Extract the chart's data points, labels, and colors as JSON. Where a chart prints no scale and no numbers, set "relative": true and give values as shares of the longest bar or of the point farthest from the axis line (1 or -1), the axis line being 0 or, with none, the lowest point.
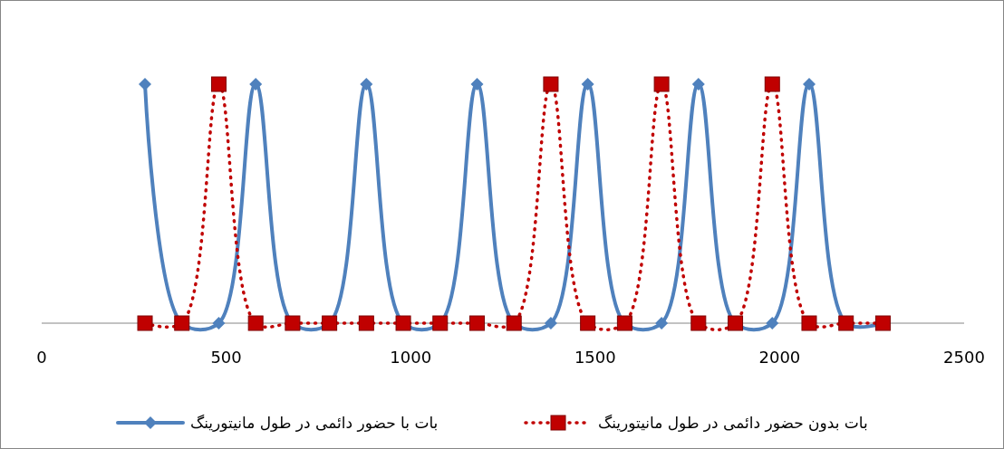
{
  "chart_data": {
    "type": "line",
    "relative": true,
    "x": [
      280,
      380,
      480,
      580,
      680,
      780,
      880,
      980,
      1080,
      1180,
      1280,
      1380,
      1480,
      1580,
      1680,
      1780,
      1880,
      1980,
      2080,
      2180,
      2280
    ],
    "xlim": [
      0,
      2500
    ],
    "xticks": [
      0,
      500,
      1000,
      1500,
      2000,
      2500
    ],
    "legend": "bottom",
    "grid": false,
    "series": [
      {
        "name": "بات با حضور دائمی در طول مانیتورینگ",
        "color": "#4f81bd",
        "marker": "diamond",
        "line_style": "solid",
        "values": [
          1,
          0,
          0,
          1,
          0,
          0,
          1,
          0,
          0,
          1,
          0,
          0,
          1,
          0,
          0,
          1,
          0,
          0,
          1,
          0,
          0
        ]
      },
      {
        "name": "بات بدون حضور دائمی در طول مانیتورینگ",
        "color": "#c00000",
        "marker": "square",
        "line_style": "dotted",
        "values": [
          0,
          0,
          1,
          0,
          0,
          0,
          0,
          0,
          0,
          0,
          0,
          1,
          0,
          0,
          1,
          0,
          0,
          1,
          0,
          0,
          0
        ]
      }
    ]
  }
}
